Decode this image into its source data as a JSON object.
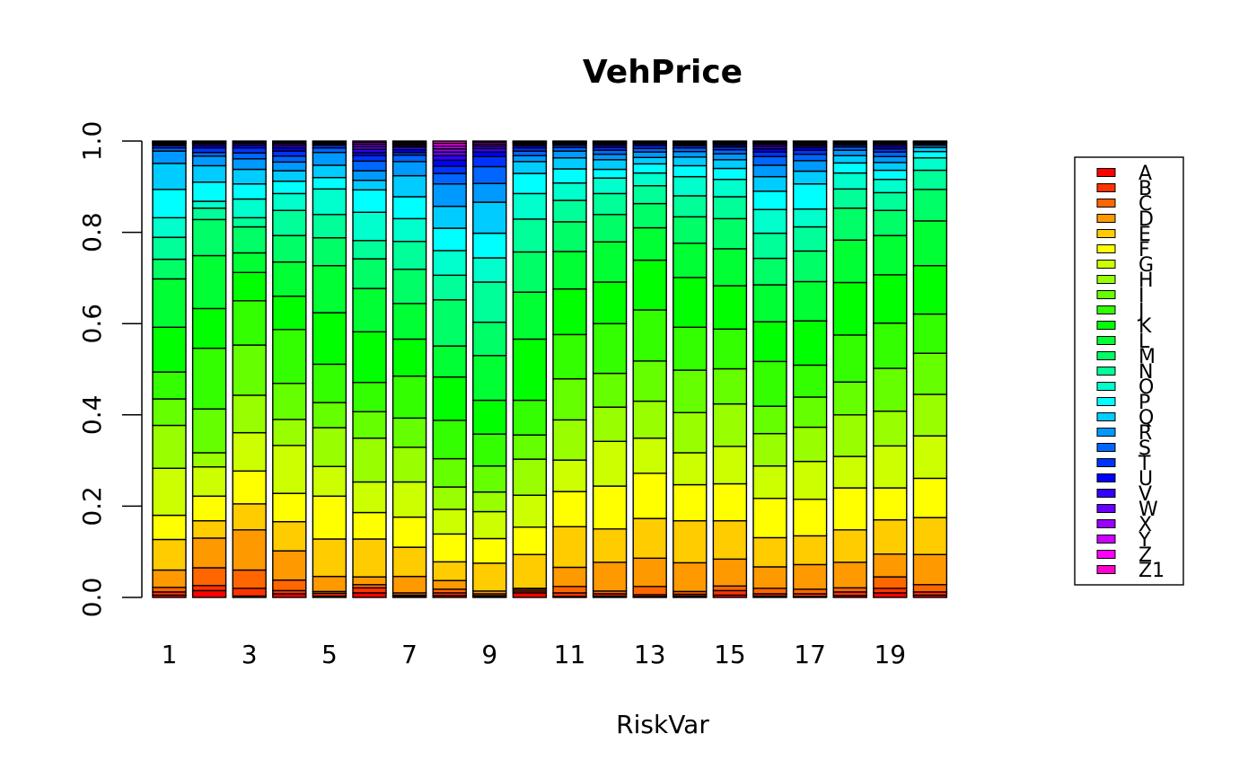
{
  "chart_data": {
    "type": "bar",
    "stacked": true,
    "proportional": true,
    "title": "VehPrice",
    "xlabel": "RiskVar",
    "ylabel": "",
    "ylim": [
      0,
      1
    ],
    "y_ticks": [
      "0.0",
      "0.2",
      "0.4",
      "0.6",
      "0.8",
      "1.0"
    ],
    "categories": [
      "1",
      "2",
      "3",
      "4",
      "5",
      "6",
      "7",
      "8",
      "9",
      "10",
      "11",
      "12",
      "13",
      "14",
      "15",
      "16",
      "17",
      "18",
      "19",
      "20"
    ],
    "x_tick_labels": [
      "1",
      "3",
      "5",
      "7",
      "9",
      "11",
      "13",
      "15",
      "17",
      "19"
    ],
    "legend_position": "right",
    "series": [
      {
        "name": "A",
        "color": "#FF0000"
      },
      {
        "name": "B",
        "color": "#FF3300"
      },
      {
        "name": "C",
        "color": "#FF6600"
      },
      {
        "name": "D",
        "color": "#FF9900"
      },
      {
        "name": "E",
        "color": "#FFCC00"
      },
      {
        "name": "F",
        "color": "#FFFF00"
      },
      {
        "name": "G",
        "color": "#CCFF00"
      },
      {
        "name": "H",
        "color": "#99FF00"
      },
      {
        "name": "I",
        "color": "#66FF00"
      },
      {
        "name": "J",
        "color": "#33FF00"
      },
      {
        "name": "K",
        "color": "#00FF00"
      },
      {
        "name": "L",
        "color": "#00FF33"
      },
      {
        "name": "M",
        "color": "#00FF66"
      },
      {
        "name": "N",
        "color": "#00FF99"
      },
      {
        "name": "O",
        "color": "#00FFCC"
      },
      {
        "name": "P",
        "color": "#00FFFF"
      },
      {
        "name": "Q",
        "color": "#00CCFF"
      },
      {
        "name": "R",
        "color": "#0099FF"
      },
      {
        "name": "S",
        "color": "#0066FF"
      },
      {
        "name": "T",
        "color": "#0033FF"
      },
      {
        "name": "U",
        "color": "#0000FF"
      },
      {
        "name": "V",
        "color": "#3300FF"
      },
      {
        "name": "W",
        "color": "#6600FF"
      },
      {
        "name": "X",
        "color": "#9900FF"
      },
      {
        "name": "Y",
        "color": "#CC00FF"
      },
      {
        "name": "Z",
        "color": "#FF00FF"
      },
      {
        "name": "Z1",
        "color": "#FF00CC"
      }
    ],
    "bars_cumulative": [
      [
        0.005,
        0.012,
        0.022,
        0.06,
        0.127,
        0.18,
        0.283,
        0.377,
        0.435,
        0.494,
        0.592,
        0.698,
        0.741,
        0.789,
        0.832,
        0.894,
        0.951,
        0.978,
        0.985,
        0.99,
        0.993,
        0.995,
        0.997,
        0.998,
        0.999,
        1.0,
        1.0
      ],
      [
        0.015,
        0.026,
        0.065,
        0.13,
        0.168,
        0.222,
        0.286,
        0.317,
        0.413,
        0.546,
        0.633,
        0.749,
        0.828,
        0.853,
        0.868,
        0.91,
        0.946,
        0.967,
        0.975,
        0.985,
        0.99,
        0.994,
        0.996,
        0.998,
        0.999,
        1.0,
        1.0
      ],
      [
        0.003,
        0.02,
        0.06,
        0.148,
        0.205,
        0.277,
        0.361,
        0.443,
        0.553,
        0.65,
        0.712,
        0.755,
        0.812,
        0.832,
        0.873,
        0.906,
        0.938,
        0.961,
        0.974,
        0.985,
        0.991,
        0.995,
        0.997,
        0.998,
        0.999,
        1.0,
        1.0
      ],
      [
        0.008,
        0.015,
        0.038,
        0.102,
        0.166,
        0.228,
        0.333,
        0.39,
        0.469,
        0.587,
        0.66,
        0.735,
        0.793,
        0.848,
        0.885,
        0.912,
        0.935,
        0.954,
        0.967,
        0.978,
        0.985,
        0.99,
        0.994,
        0.997,
        0.998,
        1.0,
        1.0
      ],
      [
        0.003,
        0.009,
        0.013,
        0.046,
        0.128,
        0.222,
        0.287,
        0.372,
        0.427,
        0.511,
        0.624,
        0.727,
        0.788,
        0.839,
        0.895,
        0.92,
        0.947,
        0.975,
        0.985,
        0.991,
        0.994,
        0.996,
        0.998,
        0.999,
        1.0,
        1.0,
        1.0
      ],
      [
        0.01,
        0.021,
        0.028,
        0.045,
        0.128,
        0.186,
        0.253,
        0.349,
        0.407,
        0.471,
        0.582,
        0.677,
        0.742,
        0.782,
        0.844,
        0.893,
        0.914,
        0.935,
        0.956,
        0.968,
        0.975,
        0.982,
        0.988,
        0.993,
        0.997,
        1.0,
        1.0
      ],
      [
        0.002,
        0.005,
        0.01,
        0.046,
        0.11,
        0.176,
        0.253,
        0.329,
        0.393,
        0.485,
        0.566,
        0.644,
        0.719,
        0.78,
        0.83,
        0.878,
        0.924,
        0.955,
        0.969,
        0.975,
        0.981,
        0.987,
        0.99,
        0.993,
        0.996,
        0.998,
        1.0
      ],
      [
        0.004,
        0.01,
        0.018,
        0.037,
        0.078,
        0.139,
        0.193,
        0.242,
        0.304,
        0.388,
        0.483,
        0.551,
        0.652,
        0.706,
        0.76,
        0.809,
        0.857,
        0.906,
        0.929,
        0.945,
        0.958,
        0.968,
        0.976,
        0.983,
        0.989,
        0.995,
        1.0
      ],
      [
        0.002,
        0.004,
        0.008,
        0.014,
        0.075,
        0.129,
        0.188,
        0.231,
        0.288,
        0.358,
        0.432,
        0.53,
        0.603,
        0.691,
        0.744,
        0.798,
        0.866,
        0.907,
        0.944,
        0.966,
        0.976,
        0.984,
        0.989,
        0.993,
        0.997,
        0.999,
        1.0
      ],
      [
        0.01,
        0.014,
        0.018,
        0.02,
        0.094,
        0.154,
        0.224,
        0.303,
        0.356,
        0.432,
        0.566,
        0.669,
        0.757,
        0.829,
        0.885,
        0.929,
        0.955,
        0.968,
        0.978,
        0.985,
        0.99,
        0.993,
        0.995,
        0.997,
        0.998,
        0.999,
        1.0
      ],
      [
        0.002,
        0.01,
        0.024,
        0.066,
        0.155,
        0.232,
        0.301,
        0.389,
        0.479,
        0.576,
        0.676,
        0.758,
        0.823,
        0.87,
        0.908,
        0.939,
        0.963,
        0.978,
        0.986,
        0.991,
        0.994,
        0.996,
        0.997,
        0.998,
        0.999,
        1.0,
        1.0
      ],
      [
        0.003,
        0.008,
        0.014,
        0.077,
        0.15,
        0.244,
        0.342,
        0.417,
        0.491,
        0.6,
        0.691,
        0.779,
        0.839,
        0.885,
        0.919,
        0.938,
        0.959,
        0.971,
        0.98,
        0.986,
        0.991,
        0.994,
        0.996,
        0.998,
        0.999,
        1.0,
        1.0
      ],
      [
        0.002,
        0.006,
        0.024,
        0.086,
        0.173,
        0.272,
        0.349,
        0.43,
        0.518,
        0.63,
        0.739,
        0.81,
        0.863,
        0.902,
        0.93,
        0.95,
        0.964,
        0.976,
        0.984,
        0.99,
        0.994,
        0.996,
        0.997,
        0.998,
        0.999,
        1.0,
        1.0
      ],
      [
        0.003,
        0.007,
        0.013,
        0.076,
        0.168,
        0.247,
        0.317,
        0.405,
        0.498,
        0.592,
        0.701,
        0.776,
        0.834,
        0.88,
        0.922,
        0.946,
        0.965,
        0.977,
        0.985,
        0.99,
        0.993,
        0.995,
        0.997,
        0.998,
        0.999,
        1.0,
        1.0
      ],
      [
        0.005,
        0.015,
        0.025,
        0.084,
        0.168,
        0.249,
        0.331,
        0.424,
        0.501,
        0.588,
        0.683,
        0.764,
        0.83,
        0.878,
        0.916,
        0.94,
        0.959,
        0.972,
        0.981,
        0.987,
        0.991,
        0.994,
        0.996,
        0.998,
        0.999,
        1.0,
        1.0
      ],
      [
        0.003,
        0.008,
        0.02,
        0.067,
        0.131,
        0.217,
        0.288,
        0.359,
        0.419,
        0.517,
        0.604,
        0.685,
        0.743,
        0.798,
        0.85,
        0.89,
        0.922,
        0.947,
        0.966,
        0.976,
        0.983,
        0.988,
        0.992,
        0.995,
        0.997,
        0.999,
        1.0
      ],
      [
        0.002,
        0.008,
        0.018,
        0.072,
        0.135,
        0.215,
        0.298,
        0.373,
        0.439,
        0.509,
        0.606,
        0.692,
        0.759,
        0.812,
        0.851,
        0.906,
        0.934,
        0.957,
        0.971,
        0.98,
        0.986,
        0.99,
        0.993,
        0.996,
        0.998,
        0.999,
        1.0
      ],
      [
        0.004,
        0.012,
        0.021,
        0.077,
        0.148,
        0.24,
        0.309,
        0.4,
        0.472,
        0.575,
        0.69,
        0.783,
        0.853,
        0.895,
        0.93,
        0.952,
        0.968,
        0.98,
        0.987,
        0.991,
        0.994,
        0.996,
        0.997,
        0.998,
        0.999,
        1.0,
        1.0
      ],
      [
        0.01,
        0.02,
        0.045,
        0.095,
        0.17,
        0.24,
        0.332,
        0.408,
        0.502,
        0.601,
        0.707,
        0.793,
        0.848,
        0.887,
        0.916,
        0.936,
        0.953,
        0.966,
        0.976,
        0.983,
        0.988,
        0.992,
        0.995,
        0.997,
        0.998,
        0.999,
        1.0
      ],
      [
        0.005,
        0.012,
        0.028,
        0.094,
        0.175,
        0.261,
        0.354,
        0.445,
        0.535,
        0.621,
        0.727,
        0.825,
        0.894,
        0.936,
        0.963,
        0.977,
        0.986,
        0.991,
        0.994,
        0.996,
        0.997,
        0.998,
        0.999,
        0.999,
        1.0,
        1.0,
        1.0
      ]
    ]
  }
}
